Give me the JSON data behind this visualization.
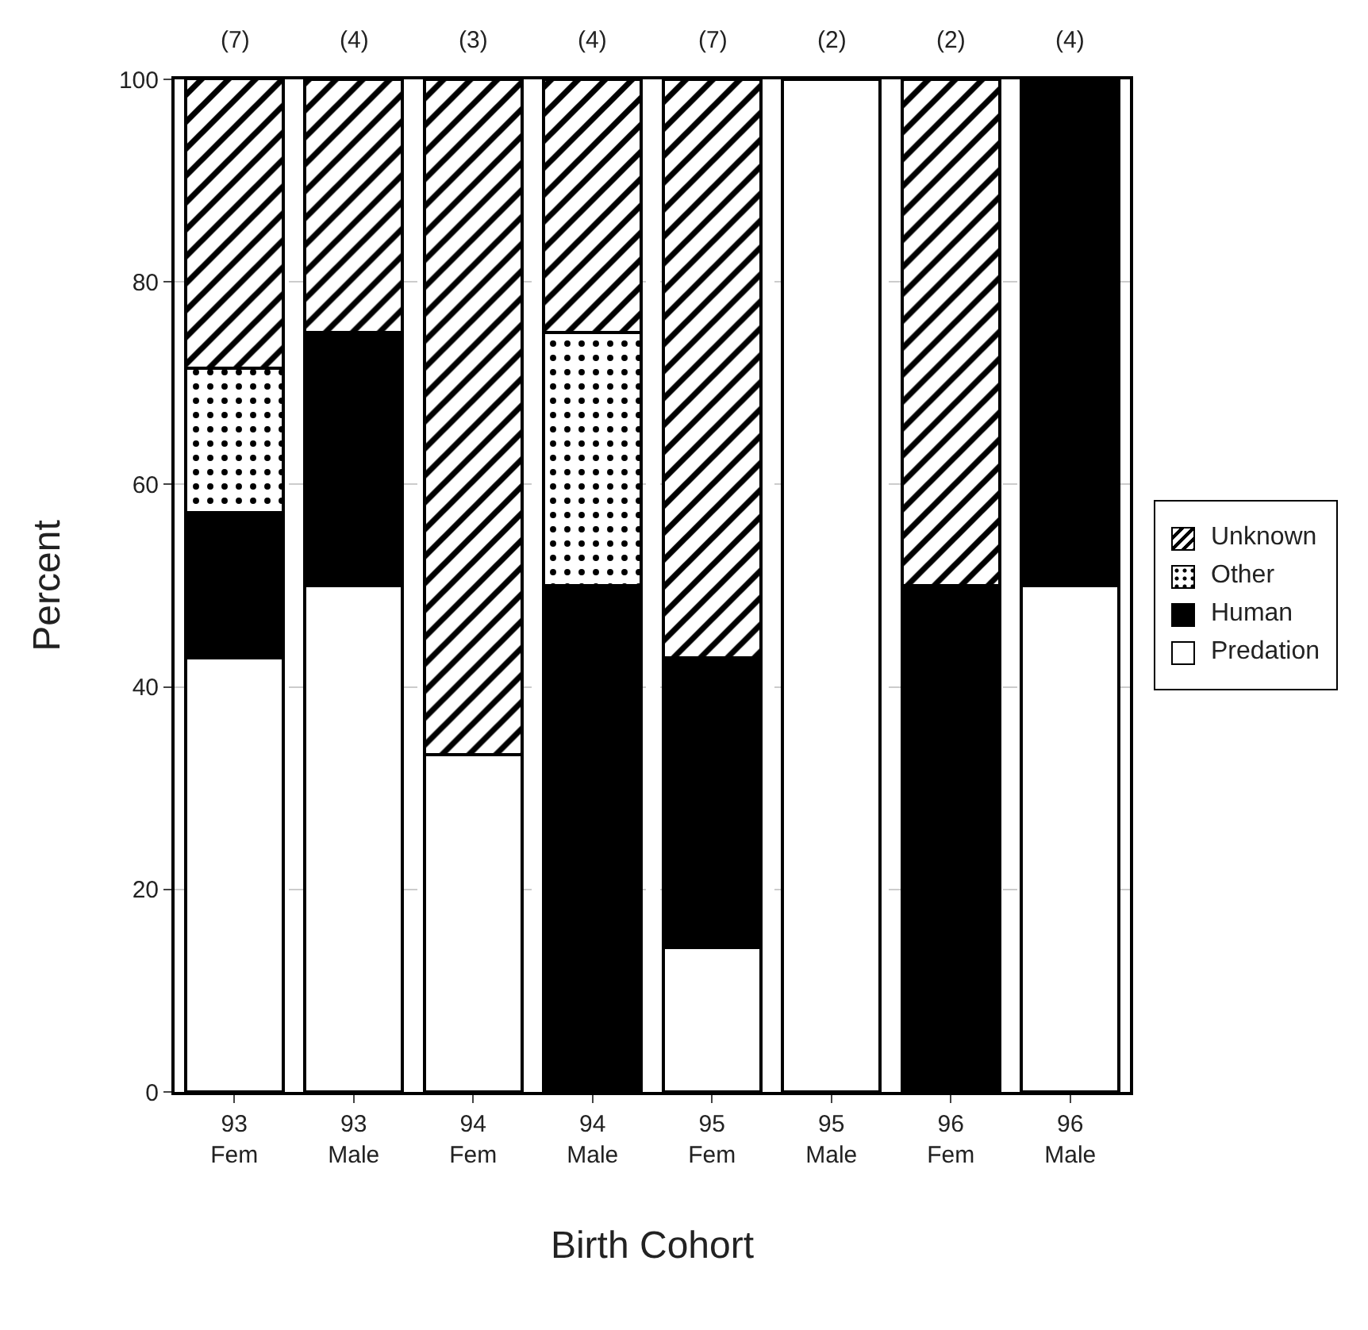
{
  "chart_data": {
    "type": "bar",
    "stacked": true,
    "xlabel": "Birth Cohort",
    "ylabel": "Percent",
    "categories": [
      "93 Fem",
      "93 Male",
      "94 Fem",
      "94 Male",
      "95 Fem",
      "95 Male",
      "96 Fem",
      "96 Male"
    ],
    "series": [
      {
        "name": "Predation",
        "color": "#ffffff",
        "values": [
          42.9,
          50,
          33.3,
          0,
          14.3,
          100,
          0,
          50
        ]
      },
      {
        "name": "Human",
        "color": "#000000",
        "values": [
          14.3,
          25,
          0,
          50,
          28.6,
          0,
          50,
          50
        ]
      },
      {
        "name": "Other",
        "color": "#000000",
        "values": [
          14.3,
          0,
          0,
          25,
          0,
          0,
          0,
          0
        ]
      },
      {
        "name": "Unknown",
        "color": "#000000",
        "values": [
          28.6,
          25,
          66.7,
          25,
          57.1,
          0,
          50,
          0
        ]
      }
    ],
    "ylim": [
      0,
      100
    ],
    "yticks": [
      0,
      20,
      40,
      60,
      80,
      100
    ],
    "grid": "y",
    "legend": "right",
    "annotations": [
      {
        "text": "(7)",
        "x": "93 Fem",
        "y": 100
      },
      {
        "text": "(4)",
        "x": "93 Male",
        "y": 100
      },
      {
        "text": "(3)",
        "x": "94 Fem",
        "y": 100
      },
      {
        "text": "(4)",
        "x": "94 Male",
        "y": 100
      },
      {
        "text": "(7)",
        "x": "95 Fem",
        "y": 100
      },
      {
        "text": "(2)",
        "x": "95 Male",
        "y": 100
      },
      {
        "text": "(2)",
        "x": "96 Fem",
        "y": 100
      },
      {
        "text": "(4)",
        "x": "96 Male",
        "y": 100
      }
    ]
  }
}
